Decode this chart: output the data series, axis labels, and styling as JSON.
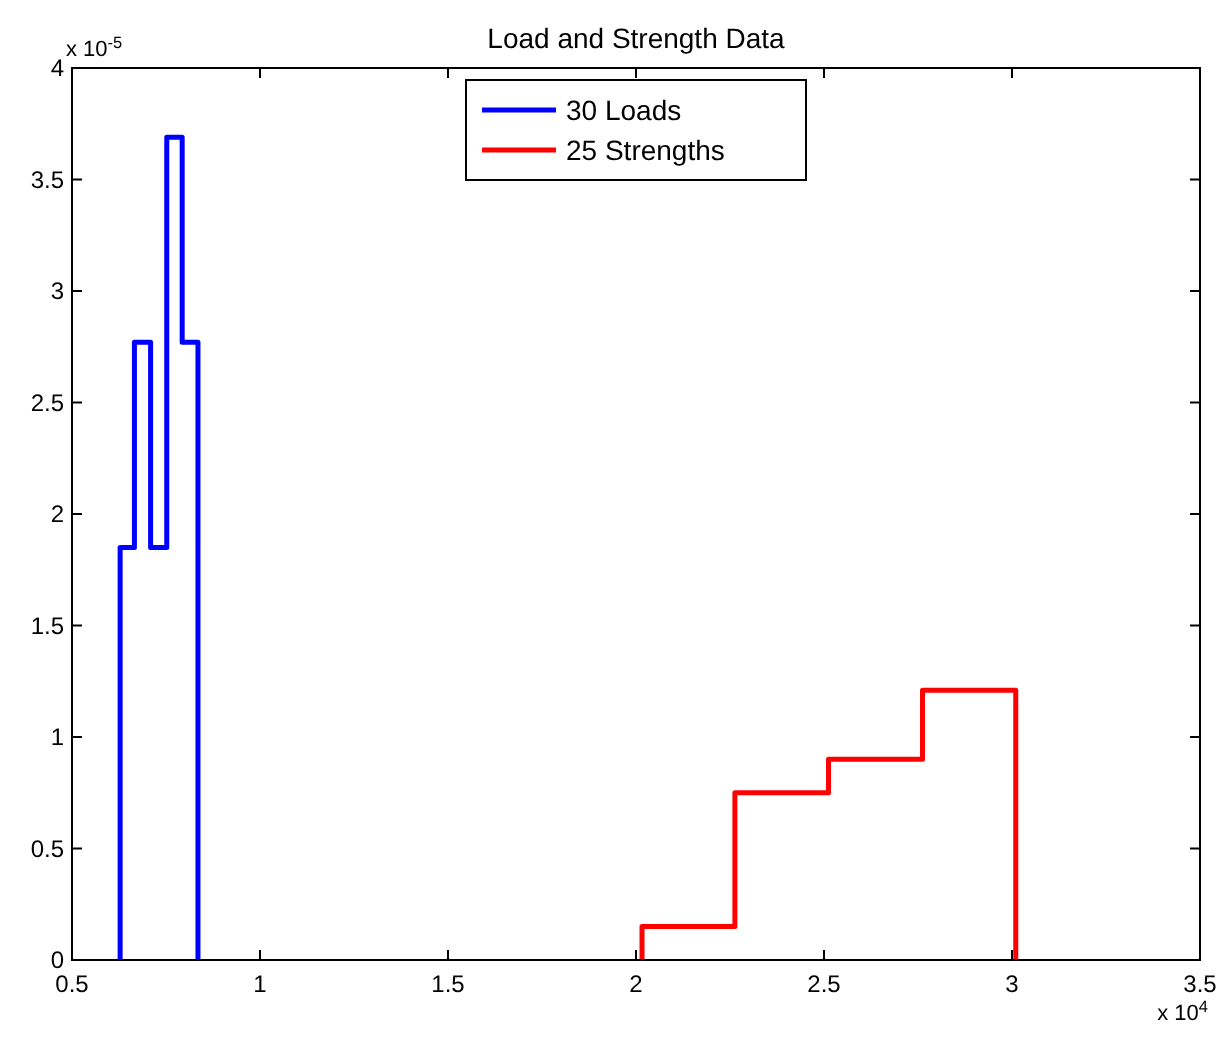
{
  "chart_data": {
    "type": "line",
    "title": "Load and Strength Data",
    "xlim": [
      0.5,
      3.5
    ],
    "xticks": [
      0.5,
      1,
      1.5,
      2,
      2.5,
      3,
      3.5
    ],
    "ylim": [
      0,
      4
    ],
    "yticks": [
      0,
      0.5,
      1,
      1.5,
      2,
      2.5,
      3,
      3.5,
      4
    ],
    "grid": false,
    "legend": "top",
    "marker": "none",
    "annotations": [
      "x 10$^{-5}$",
      "x 10$^{4}$"
    ],
    "series": [
      {
        "name": "30 Loads",
        "color": "#0000ff",
        "x": [
          0.628,
          0.628,
          0.666,
          0.666,
          0.709,
          0.709,
          0.752,
          0.752,
          0.793,
          0.793,
          0.835,
          0.835
        ],
        "values": [
          0,
          1.85,
          1.85,
          2.77,
          2.77,
          1.85,
          1.85,
          3.69,
          3.69,
          2.77,
          2.77,
          0
        ]
      },
      {
        "name": "25 Strengths",
        "color": "#ff0000",
        "x": [
          2.016,
          2.016,
          2.263,
          2.263,
          2.512,
          2.512,
          2.762,
          2.762,
          3.01,
          3.01
        ],
        "values": [
          0,
          0.15,
          0.15,
          0.75,
          0.75,
          0.9,
          0.9,
          1.21,
          1.21,
          0
        ]
      }
    ]
  }
}
